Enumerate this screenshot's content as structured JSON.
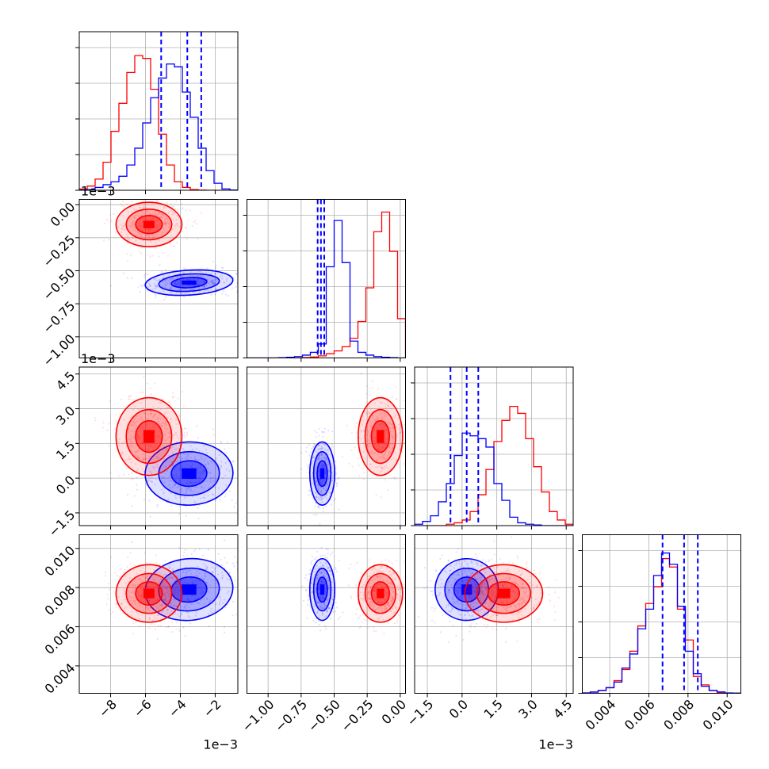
{
  "chart_data": {
    "type": "corner",
    "colors": {
      "series_a": "#0000ff",
      "series_b": "#ff0000"
    },
    "grid": true,
    "legend": "none",
    "n_params": 4,
    "params": [
      {
        "range": [
          -0.0098,
          -0.0007
        ],
        "ticks": [
          -0.008,
          -0.006,
          -0.004,
          -0.002
        ],
        "tick_labels": [
          "−8",
          "−6",
          "−4",
          "−2"
        ],
        "offset": "1e−3"
      },
      {
        "range": [
          -1.16,
          0.04
        ],
        "ticks": [
          -1.0,
          -0.75,
          -0.5,
          -0.25,
          0.0
        ],
        "tick_labels": [
          "−1.00",
          "−0.75",
          "−0.50",
          "−0.25",
          "0.00"
        ],
        "offset": "1e−3"
      },
      {
        "range": [
          -0.00205,
          0.0048
        ],
        "ticks": [
          -0.0015,
          0.0,
          0.0015,
          0.003,
          0.0045
        ],
        "tick_labels": [
          "−1.5",
          "0.0",
          "1.5",
          "3.0",
          "4.5"
        ],
        "offset": "1e−3"
      },
      {
        "range": [
          0.0026,
          0.0107
        ],
        "ticks": [
          0.004,
          0.006,
          0.008,
          0.01
        ],
        "tick_labels": [
          "0.004",
          "0.006",
          "0.008",
          "0.010"
        ],
        "offset": ""
      }
    ],
    "series": [
      {
        "color": "blue",
        "means": [
          -0.0035,
          -0.59,
          0.0002,
          0.0079
        ],
        "sigmas": [
          0.0012,
          0.045,
          0.00065,
          0.00075
        ],
        "quantiles": [
          [
            -0.0051,
            -0.0036,
            -0.0028
          ],
          [
            -0.625,
            -0.6,
            -0.575
          ],
          [
            -0.0005,
            0.0002,
            0.0007
          ],
          [
            0.0067,
            0.0078,
            0.0085
          ]
        ]
      },
      {
        "color": "red",
        "means": [
          -0.0058,
          -0.15,
          0.0018,
          0.0077
        ],
        "sigmas": [
          0.0009,
          0.08,
          0.0008,
          0.0007
        ]
      }
    ],
    "histograms": [
      {
        "blue": [
          0.2,
          0.5,
          2,
          4,
          6,
          10,
          18,
          30,
          48,
          66,
          80,
          90,
          88,
          70,
          52,
          30,
          14,
          5,
          1,
          0.2
        ],
        "red": [
          1,
          3,
          8,
          20,
          42,
          62,
          84,
          96,
          94,
          72,
          40,
          18,
          6,
          2,
          0.5,
          0.1,
          0,
          0,
          0,
          0
        ]
      },
      {
        "blue": [
          0,
          0,
          0,
          0,
          0.2,
          0.5,
          1,
          2,
          4,
          10,
          65,
          98,
          68,
          12,
          4,
          2,
          1,
          0.5,
          0.2,
          0
        ],
        "red": [
          0,
          0,
          0,
          0,
          0,
          0,
          0,
          0.3,
          0.7,
          1.5,
          3,
          5,
          8,
          14,
          26,
          50,
          90,
          104,
          76,
          28
        ]
      },
      {
        "blue": [
          1,
          3,
          7,
          17,
          30,
          50,
          66,
          64,
          62,
          56,
          30,
          18,
          6,
          2,
          1,
          0.5,
          0,
          0,
          0,
          0
        ],
        "red": [
          0,
          0,
          0,
          0,
          1,
          2,
          4,
          10,
          22,
          40,
          60,
          75,
          85,
          80,
          62,
          42,
          24,
          10,
          4,
          1
        ]
      },
      {
        "blue": [
          0.3,
          0.8,
          2,
          4,
          8,
          18,
          28,
          46,
          60,
          84,
          100,
          92,
          62,
          30,
          14,
          5,
          2,
          1,
          0.3,
          0.1
        ],
        "red": [
          0.3,
          1,
          2,
          4,
          9,
          17,
          30,
          48,
          64,
          76,
          96,
          90,
          60,
          38,
          12,
          6,
          2,
          0.6,
          0.2,
          0.1
        ]
      }
    ]
  }
}
